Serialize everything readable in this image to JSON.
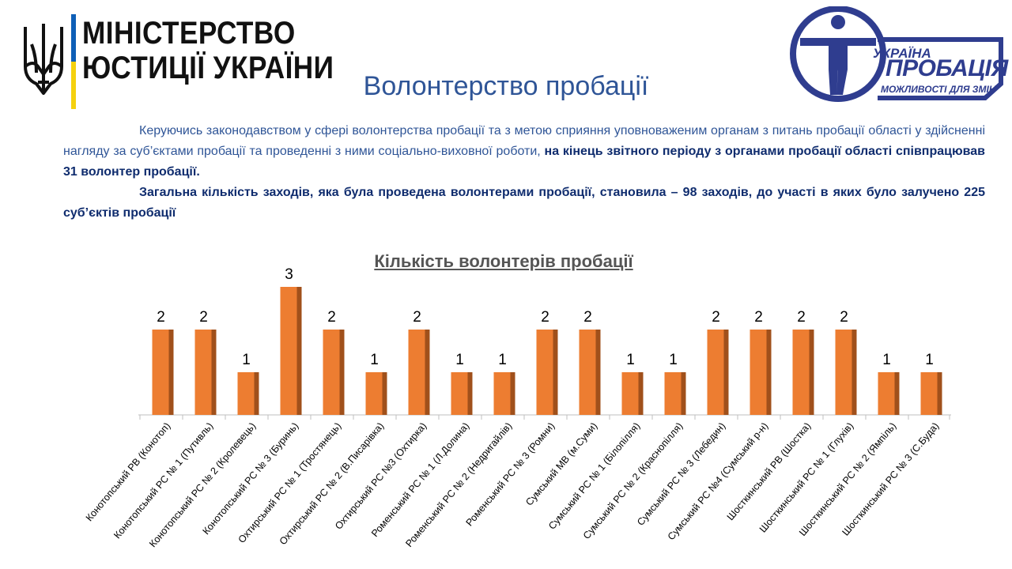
{
  "header": {
    "ministry_line1": "МІНІСТЕРСТВО",
    "ministry_line2": "ЮСТИЦІЇ УКРАЇНИ",
    "title": "Волонтерство пробації",
    "probation_logo": {
      "line1": "УКРАЇНА",
      "line2": "ПРОБАЦІЯ",
      "slogan": "МОЖЛИВОСТІ ДЛЯ ЗМІН"
    }
  },
  "body_text": {
    "p1_regular": "Керуючись законодавством у сфері волонтерства пробації та з метою сприяння уповноваженим органам з питань пробації області у здійсненні нагляду за суб’єктами пробації та проведенні з ними соціально-виховної роботи, ",
    "p1_bold": "на кінець звітного періоду з органами пробації області співпрацював 31 волонтер пробації.",
    "p2_bold": "Загальна кількість заходів, яка була проведена волонтерами пробації, становила – 98 заходів, до участі в  яких було залучено 225 суб’єктів пробації"
  },
  "colors": {
    "title_blue": "#2f5597",
    "bar_face": "#ed7d31",
    "bar_side": "#a0501b"
  },
  "chart_data": {
    "type": "bar",
    "title": "Кількість волонтерів пробації",
    "categories": [
      "Конотопський РВ (Конотоп)",
      "Конотопський РС № 1 (Путивль)",
      "Конотопський РС № 2 (Кролевець)",
      "Конотопський РС № 3 (Буринь)",
      "Охтирський РС № 1 (Тростянець)",
      "Охтирський РС № 2 (В.Писарівка)",
      "Охтирський РС №3 (Охтирка)",
      "Роменський РС № 1 (Л.Долина)",
      "Роменський РС № 2 (Недригайлів)",
      "Роменський РС № 3 (Ромни)",
      "Сумський МВ (м.Суми)",
      "Сумський РС № 1 (Білопілля)",
      "Сумський РС № 2 (Краснопілля)",
      "Сумський РС № 3 (Лебедин)",
      "Сумський РС №4 (Сумський р-н)",
      "Шосткинський РВ (Шостка)",
      "Шосткинський РС № 1 (Глухів)",
      "Шосткинський РС № 2 (Ямпіль)",
      "Шосткинський РС № 3 (С.Буда)"
    ],
    "values": [
      2,
      2,
      1,
      3,
      2,
      1,
      2,
      1,
      1,
      2,
      2,
      1,
      1,
      2,
      2,
      2,
      2,
      1,
      1
    ],
    "data_labels": true,
    "ylim": [
      0,
      3
    ],
    "grid": false,
    "legend": "none",
    "xlabel": "",
    "ylabel": ""
  }
}
